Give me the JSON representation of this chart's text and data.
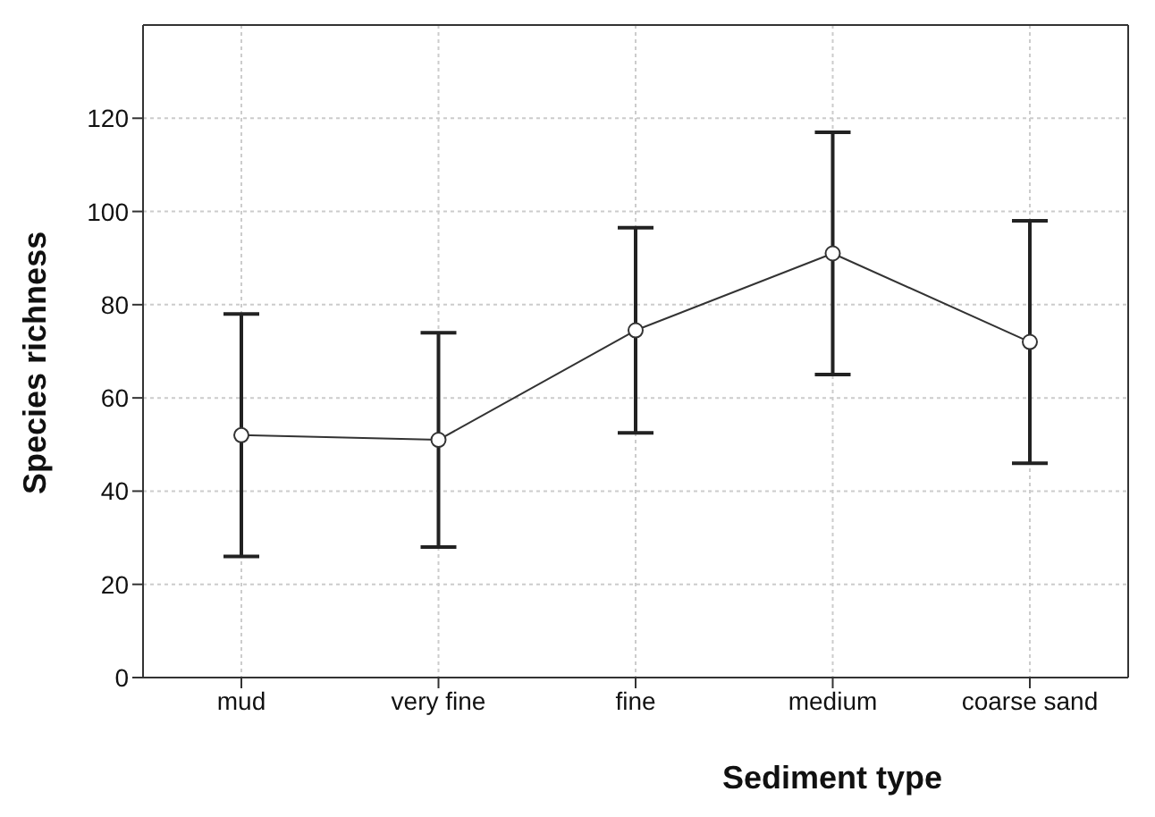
{
  "chart_data": {
    "type": "line",
    "xlabel": "Sediment type",
    "ylabel": "Species richness",
    "categories": [
      "mud",
      "very fine",
      "fine",
      "medium",
      "coarse sand"
    ],
    "series": [
      {
        "color": "#333333",
        "values": [
          52,
          51,
          74.5,
          91,
          72
        ],
        "errors": [
          26,
          23,
          22,
          26,
          26
        ]
      }
    ],
    "ylim": [
      0,
      140
    ],
    "yticks": [
      0,
      20,
      40,
      60,
      80,
      100,
      120
    ],
    "grid": true,
    "legend": false,
    "marker": "circle",
    "line_style": "solid"
  }
}
